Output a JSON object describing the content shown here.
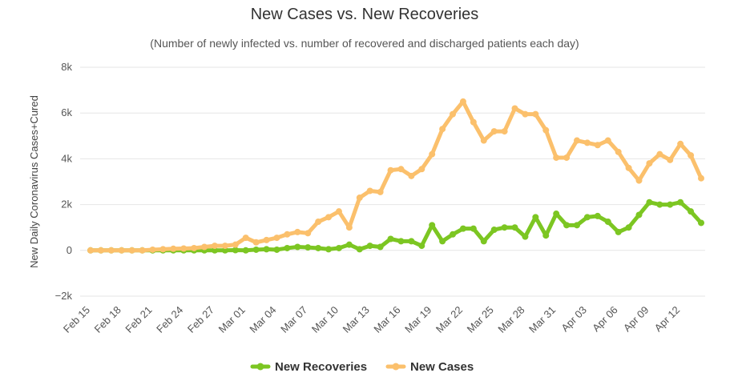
{
  "chart_data": {
    "type": "line",
    "title": "New Cases vs. New Recoveries",
    "subtitle": "(Number of newly infected vs. number of recovered and discharged patients each day)",
    "xlabel": "",
    "ylabel": "New Daily Coronavirus Cases+Cured",
    "ylim": [
      -2000,
      8000
    ],
    "yticks": [
      -2000,
      0,
      2000,
      4000,
      6000,
      8000
    ],
    "ytick_labels": [
      "−2k",
      "0",
      "2k",
      "4k",
      "6k",
      "8k"
    ],
    "x_start": "2020-02-15",
    "x_tick_labels": [
      "Feb 15",
      "Feb 18",
      "Feb 21",
      "Feb 24",
      "Feb 27",
      "Mar 01",
      "Mar 04",
      "Mar 07",
      "Mar 10",
      "Mar 13",
      "Mar 16",
      "Mar 19",
      "Mar 22",
      "Mar 25",
      "Mar 28",
      "Mar 31",
      "Apr 03",
      "Apr 06",
      "Apr 09",
      "Apr 12"
    ],
    "grid": true,
    "legend_position": "bottom",
    "series": [
      {
        "name": "New Recoveries",
        "color": "#7cc622",
        "values": [
          0,
          0,
          0,
          0,
          0,
          0,
          0,
          0,
          0,
          0,
          0,
          0,
          0,
          0,
          10,
          0,
          30,
          50,
          30,
          100,
          150,
          130,
          100,
          50,
          100,
          250,
          50,
          200,
          150,
          500,
          400,
          400,
          200,
          1100,
          400,
          700,
          950,
          950,
          400,
          900,
          1000,
          1000,
          600,
          1450,
          650,
          1600,
          1100,
          1100,
          1450,
          1500,
          1250,
          800,
          1000,
          1550,
          2100,
          2000,
          2000,
          2100,
          1700,
          1200
        ]
      },
      {
        "name": "New Cases",
        "color": "#fbc06c",
        "values": [
          0,
          0,
          0,
          0,
          0,
          0,
          30,
          50,
          70,
          80,
          100,
          150,
          200,
          200,
          250,
          550,
          350,
          450,
          550,
          700,
          800,
          750,
          1250,
          1450,
          1700,
          1000,
          2300,
          2600,
          2550,
          3500,
          3550,
          3250,
          3550,
          4200,
          5300,
          5950,
          6500,
          5600,
          4800,
          5200,
          5200,
          6200,
          5950,
          5950,
          5250,
          4050,
          4050,
          4800,
          4700,
          4600,
          4800,
          4300,
          3600,
          3050,
          3800,
          4200,
          3950,
          4650,
          4150,
          3150
        ]
      }
    ]
  }
}
